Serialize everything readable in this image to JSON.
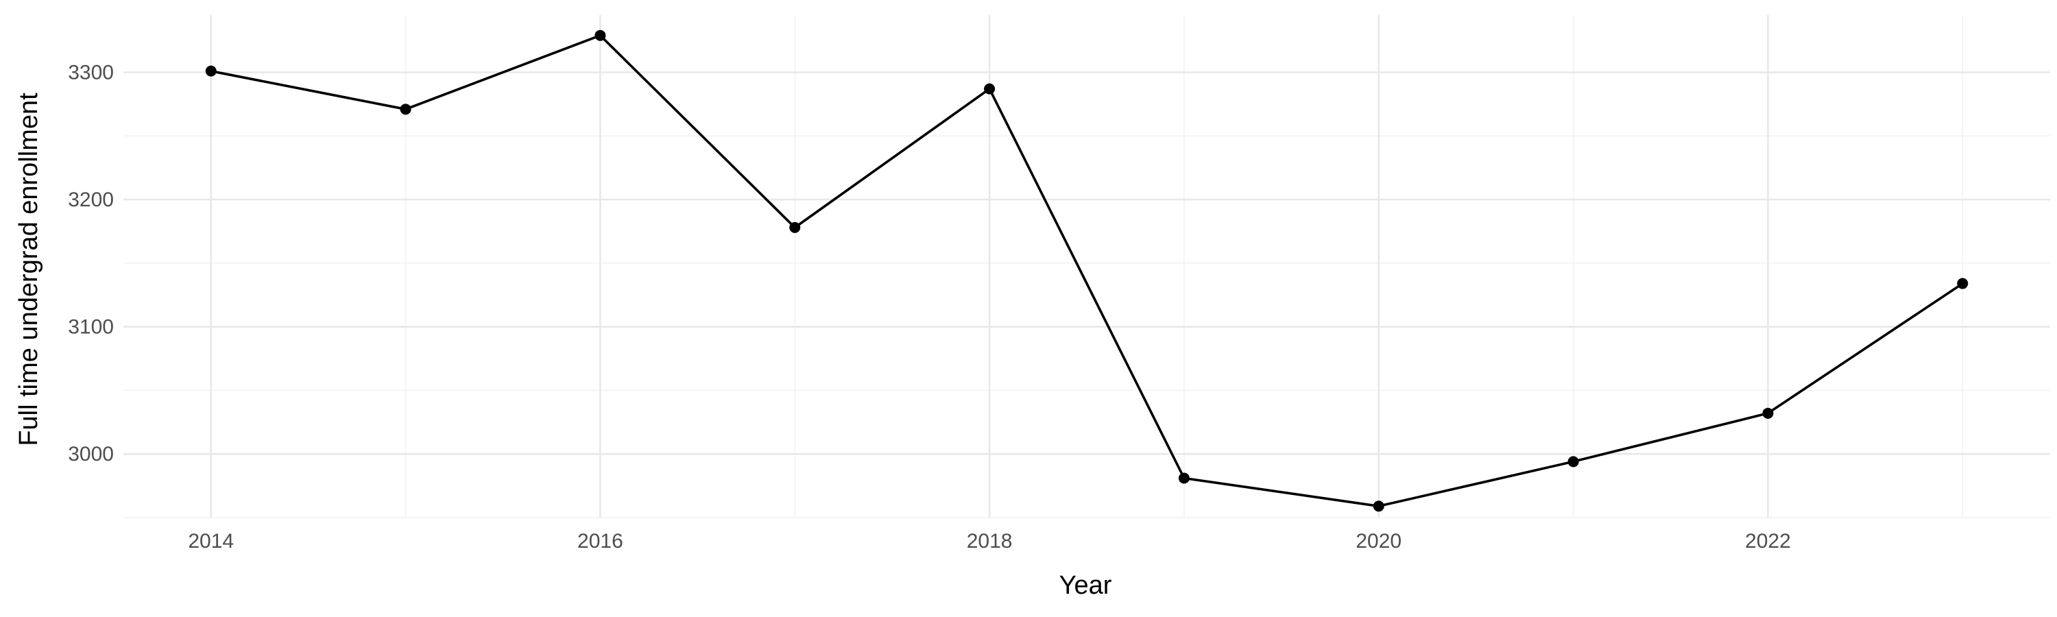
{
  "chart_data": {
    "type": "line",
    "title": "",
    "xlabel": "Year",
    "ylabel": "Full time undergrad enrollment",
    "x": [
      2014,
      2015,
      2016,
      2017,
      2018,
      2019,
      2020,
      2021,
      2022,
      2023
    ],
    "series": [
      {
        "name": "",
        "values": [
          3301,
          3271,
          3329,
          3178,
          3287,
          2981,
          2959,
          2994,
          3032,
          3134
        ],
        "color": "#000000"
      }
    ],
    "xlim": [
      2013.55,
      2023.45
    ],
    "ylim": [
      2950,
      3345
    ],
    "x_ticks": [
      2014,
      2016,
      2018,
      2020,
      2022
    ],
    "y_ticks": [
      3000,
      3100,
      3200,
      3300
    ],
    "grid": true,
    "legend": "none"
  }
}
